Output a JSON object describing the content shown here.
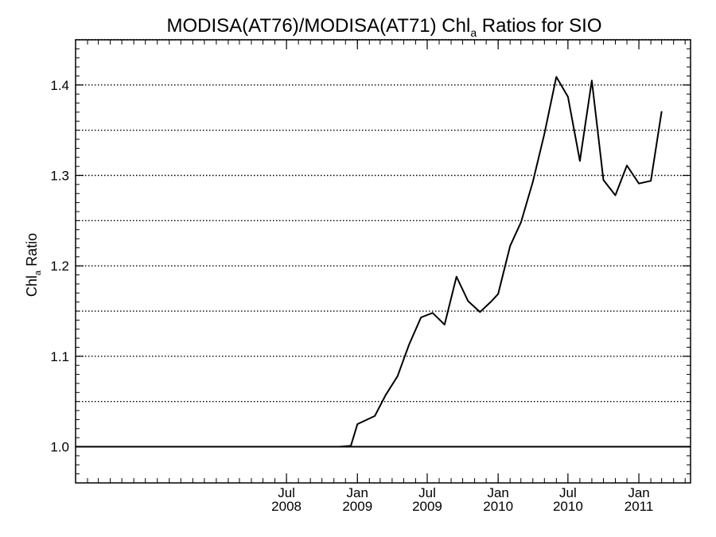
{
  "chart_data": {
    "type": "line",
    "title": {
      "prefix": "MODISA(AT76)/MODISA(AT71)  Chl",
      "subscript": "a",
      "suffix": " Ratios for SIO"
    },
    "ylabel": {
      "prefix": "Chl",
      "subscript": "a",
      "suffix": " Ratio"
    },
    "xlabel": "",
    "x_range": [
      "2007-01-01",
      "2011-05-15"
    ],
    "ylim": [
      0.96,
      1.45
    ],
    "y_ticks": [
      {
        "value": 1.0,
        "label": "1.0"
      },
      {
        "value": 1.1,
        "label": "1.1"
      },
      {
        "value": 1.2,
        "label": "1.2"
      },
      {
        "value": 1.3,
        "label": "1.3"
      },
      {
        "value": 1.4,
        "label": "1.4"
      }
    ],
    "y_gridlines": [
      1.05,
      1.1,
      1.15,
      1.2,
      1.25,
      1.3,
      1.35,
      1.4,
      1.45
    ],
    "y_minor_step": 0.01,
    "x_ticks": [
      {
        "date": "2008-07-01",
        "month": "Jul",
        "year": "2008"
      },
      {
        "date": "2009-01-01",
        "month": "Jan",
        "year": "2009"
      },
      {
        "date": "2009-07-01",
        "month": "Jul",
        "year": "2009"
      },
      {
        "date": "2010-01-01",
        "month": "Jan",
        "year": "2010"
      },
      {
        "date": "2010-07-01",
        "month": "Jul",
        "year": "2010"
      },
      {
        "date": "2011-01-01",
        "month": "Jan",
        "year": "2011"
      }
    ],
    "reference_line": 1.0,
    "grid": "horizontal dotted",
    "series": [
      {
        "points": [
          [
            "2007-01-01",
            1.0
          ],
          [
            "2008-11-15",
            1.0
          ],
          [
            "2008-12-15",
            1.001
          ],
          [
            "2009-01-01",
            1.025
          ],
          [
            "2009-02-15",
            1.034
          ],
          [
            "2009-03-15",
            1.057
          ],
          [
            "2009-04-15",
            1.078
          ],
          [
            "2009-05-15",
            1.113
          ],
          [
            "2009-06-15",
            1.143
          ],
          [
            "2009-07-15",
            1.148
          ],
          [
            "2009-08-15",
            1.135
          ],
          [
            "2009-09-15",
            1.188
          ],
          [
            "2009-10-15",
            1.161
          ],
          [
            "2009-11-15",
            1.149
          ],
          [
            "2009-12-15",
            1.161
          ],
          [
            "2010-01-01",
            1.169
          ],
          [
            "2010-02-01",
            1.222
          ],
          [
            "2010-03-01",
            1.248
          ],
          [
            "2010-04-01",
            1.293
          ],
          [
            "2010-05-01",
            1.346
          ],
          [
            "2010-06-01",
            1.409
          ],
          [
            "2010-07-01",
            1.387
          ],
          [
            "2010-08-01",
            1.316
          ],
          [
            "2010-09-01",
            1.405
          ],
          [
            "2010-10-01",
            1.295
          ],
          [
            "2010-11-01",
            1.278
          ],
          [
            "2010-12-01",
            1.311
          ],
          [
            "2011-01-01",
            1.291
          ],
          [
            "2011-02-01",
            1.294
          ],
          [
            "2011-03-01",
            1.371
          ]
        ]
      }
    ]
  }
}
